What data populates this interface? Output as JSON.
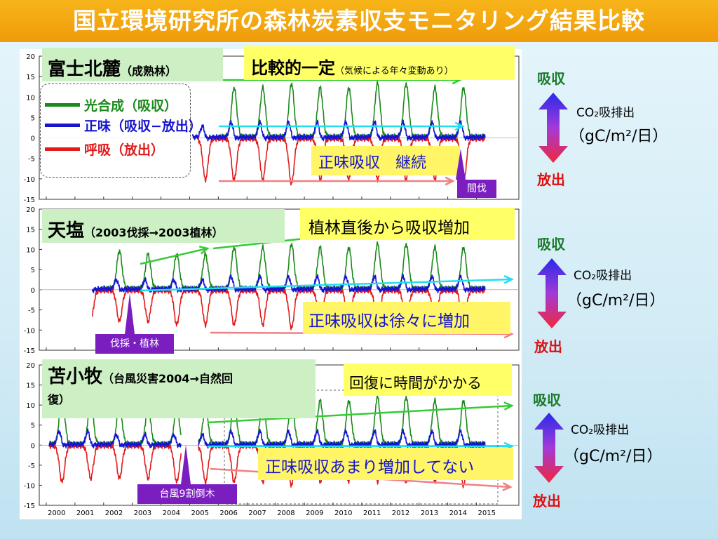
{
  "title": "国立環境研究所の森林炭素収支モニタリング結果比較",
  "colors": {
    "photosynthesis": "#1a8a1a",
    "net": "#1515d0",
    "respiration": "#e21a1a",
    "green_arrow": "#33cc33",
    "cyan_arrow": "#22ddee",
    "red_arrow": "#f08080"
  },
  "legend": {
    "photosynthesis": "光合成（吸収）",
    "net": "正味（吸収−放出）",
    "respiration": "呼吸（放出）"
  },
  "side": {
    "absorb": "吸収",
    "emit": "放出",
    "unit_line1": "CO₂吸排出",
    "unit_line2": "（gC/m²/日）"
  },
  "panels": [
    {
      "name": "富士北麓",
      "sub": "（成熟林）",
      "note_main": "比較的一定",
      "note_sub": "（気候による年々変動あり）",
      "note2": "正味吸収　継続",
      "event": "間伐"
    },
    {
      "name": "天塩",
      "sub": "（2003伐採→2003植林）",
      "note_main": "植林直後から吸収増加",
      "note2": "正味吸収は徐々に増加",
      "event": "伐採・植林"
    },
    {
      "name": "苫小牧",
      "sub": "（台風災害2004→自然回",
      "sub2": "復）",
      "note_main": "回復に時間がかかる",
      "note2": "正味吸収あまり増加してない",
      "event": "台風9割倒木"
    }
  ],
  "chart_data": {
    "type": "line",
    "x_unit": "year",
    "x_ticks": [
      "2000",
      "2001",
      "2002",
      "2003",
      "2004",
      "2005",
      "2006",
      "2007",
      "2008",
      "2009",
      "2010",
      "2011",
      "2012",
      "2013",
      "2014",
      "2015"
    ],
    "y_ticks": [
      "20",
      "15",
      "10",
      "5",
      "0",
      "-5",
      "-10",
      "-15"
    ],
    "ylim": [
      -15,
      20
    ],
    "series": [
      {
        "name": "光合成（吸収）",
        "color": "#1a8a1a",
        "seasonal_peak_approx": [
          14,
          12,
          11,
          10,
          10,
          10,
          12,
          12,
          13,
          12,
          12,
          13,
          13,
          12,
          12,
          12
        ]
      },
      {
        "name": "正味（吸収−放出）",
        "color": "#1515d0",
        "seasonal_peak_approx": [
          4,
          4,
          3,
          3,
          3,
          3,
          4,
          4,
          4,
          4,
          4,
          4,
          4,
          4,
          4,
          4
        ]
      },
      {
        "name": "呼吸（放出）",
        "color": "#e21a1a",
        "seasonal_trough_approx": [
          -10,
          -9,
          -9,
          -9,
          -10,
          -10,
          -10,
          -10,
          -11,
          -10,
          -10,
          -10,
          -10,
          -10,
          -11,
          -11
        ]
      }
    ]
  }
}
